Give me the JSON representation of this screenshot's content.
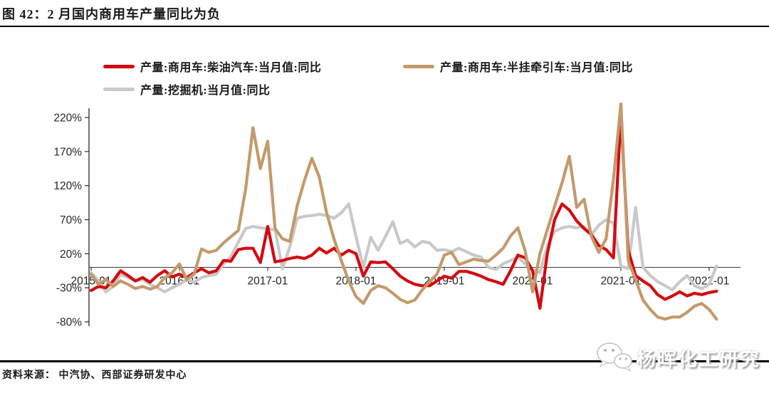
{
  "figure": {
    "title": "图 42：2 月国内商用车产量同比为负"
  },
  "source": {
    "text": "资料来源： 中汽协、西部证券研发中心"
  },
  "watermark": {
    "text": "杨晖化工研究",
    "icon": "wechat-icon"
  },
  "chart_data": {
    "type": "line",
    "x_start": "2015-01",
    "x_end": "2022-02",
    "x_freq": "monthly",
    "xtick_labels": [
      "2015-01",
      "2016-01",
      "2017-01",
      "2018-01",
      "2019-01",
      "2020-01",
      "2021-01",
      "2022-01"
    ],
    "ytick_labels": [
      "220%",
      "170%",
      "120%",
      "70%",
      "20%",
      "-30%",
      "-80%"
    ],
    "yticks": [
      220,
      170,
      120,
      70,
      20,
      -30,
      -80
    ],
    "ylim": [
      -80,
      245
    ],
    "grid": false,
    "legend_position": "top",
    "axis_color": "#262626",
    "series": [
      {
        "name": "产量:商用车:柴油汽车:当月值:同比",
        "color": "#d40a10",
        "values": [
          -34,
          -28,
          -30,
          -20,
          -5,
          -12,
          -20,
          -15,
          -22,
          -12,
          -5,
          -14,
          -10,
          -15,
          -8,
          -2,
          -8,
          -5,
          10,
          9,
          26,
          28,
          28,
          7,
          60,
          8,
          10,
          13,
          15,
          13,
          18,
          28,
          21,
          28,
          18,
          25,
          20,
          -13,
          8,
          7,
          8,
          -2,
          -13,
          -20,
          -25,
          -27,
          -27,
          -20,
          -13,
          -16,
          -6,
          -6,
          -9,
          -13,
          -18,
          -21,
          -25,
          -5,
          18,
          14,
          -5,
          -60,
          20,
          70,
          93,
          84,
          68,
          57,
          48,
          32,
          26,
          14,
          225,
          25,
          -12,
          -20,
          -27,
          -40,
          -47,
          -42,
          -36,
          -42,
          -38,
          -40,
          -37,
          -35
        ]
      },
      {
        "name": "产量:商用车:半挂牵引车:当月值:同比",
        "color": "#c49a6c",
        "values": [
          -10,
          -25,
          -18,
          -28,
          -20,
          -25,
          -31,
          -28,
          -32,
          -28,
          -15,
          -8,
          5,
          -18,
          -10,
          27,
          22,
          25,
          36,
          45,
          54,
          115,
          205,
          145,
          185,
          57,
          42,
          38,
          90,
          128,
          160,
          133,
          80,
          42,
          10,
          -20,
          -43,
          -53,
          -34,
          -27,
          -30,
          -38,
          -47,
          -52,
          -48,
          -33,
          -21,
          -10,
          18,
          22,
          4,
          8,
          12,
          10,
          9,
          18,
          28,
          46,
          58,
          24,
          -36,
          20,
          55,
          90,
          124,
          163,
          88,
          100,
          45,
          22,
          42,
          130,
          240,
          10,
          -18,
          -48,
          -62,
          -73,
          -76,
          -73,
          -73,
          -66,
          -57,
          -53,
          -62,
          -76
        ]
      },
      {
        "name": "产量:挖掘机:当月值:同比",
        "color": "#c9c9c9",
        "values": [
          -8,
          -20,
          -36,
          -28,
          -10,
          -15,
          -20,
          -18,
          -25,
          -30,
          -36,
          -30,
          -25,
          -18,
          -22,
          -15,
          -12,
          -10,
          5,
          16,
          37,
          57,
          60,
          58,
          57,
          55,
          -2,
          30,
          72,
          75,
          76,
          78,
          76,
          72,
          80,
          93,
          45,
          0,
          44,
          25,
          45,
          67,
          35,
          40,
          30,
          38,
          36,
          25,
          26,
          23,
          28,
          23,
          18,
          15,
          0,
          -3,
          5,
          10,
          15,
          5,
          -3,
          -8,
          32,
          53,
          58,
          60,
          58,
          60,
          48,
          62,
          70,
          65,
          2,
          -2,
          88,
          0,
          -12,
          -21,
          -27,
          -33,
          -21,
          -12,
          -27,
          -31,
          -25,
          2
        ]
      }
    ]
  }
}
